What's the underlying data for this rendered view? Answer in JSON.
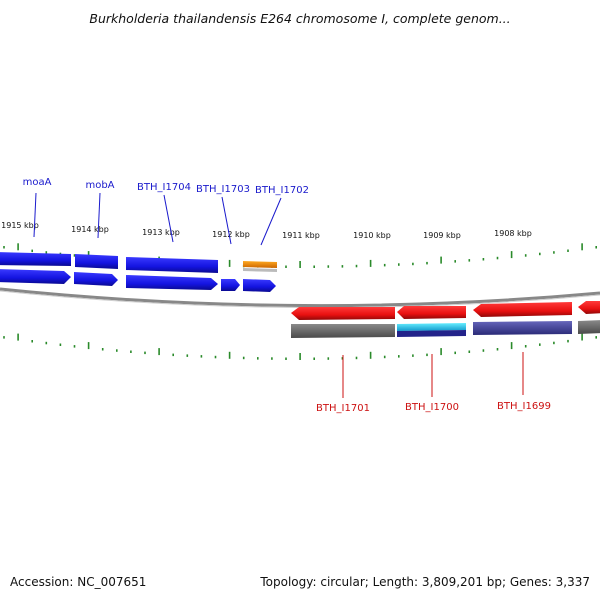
{
  "title": "Burkholderia thailandensis E264 chromosome I, complete genom...",
  "footer": {
    "accession": "Accession: NC_007651",
    "summary": "Topology: circular; Length: 3,809,201 bp; Genes: 3,337"
  },
  "colors": {
    "forward_gene": "#1a1aee",
    "reverse_gene": "#ee1111",
    "forward_label": "#1a1acc",
    "reverse_label": "#cc1111",
    "tick": "#2a8a2a",
    "backbone": "#888888",
    "gene_orange": "#ee8800",
    "gene_cyan": "#22ccee",
    "gene_purple": "#444499",
    "gene_gray": "#666666"
  },
  "scale_labels": [
    "1915 kbp",
    "1914 kbp",
    "1913 kbp",
    "1912 kbp",
    "1911 kbp",
    "1910 kbp",
    "1909 kbp",
    "1908 kbp"
  ],
  "forward_gene_labels": [
    "moaA",
    "mobA",
    "BTH_I1704",
    "BTH_I1703",
    "BTH_I1702"
  ],
  "reverse_gene_labels": [
    "BTH_I1701",
    "BTH_I1700",
    "BTH_I1699"
  ]
}
